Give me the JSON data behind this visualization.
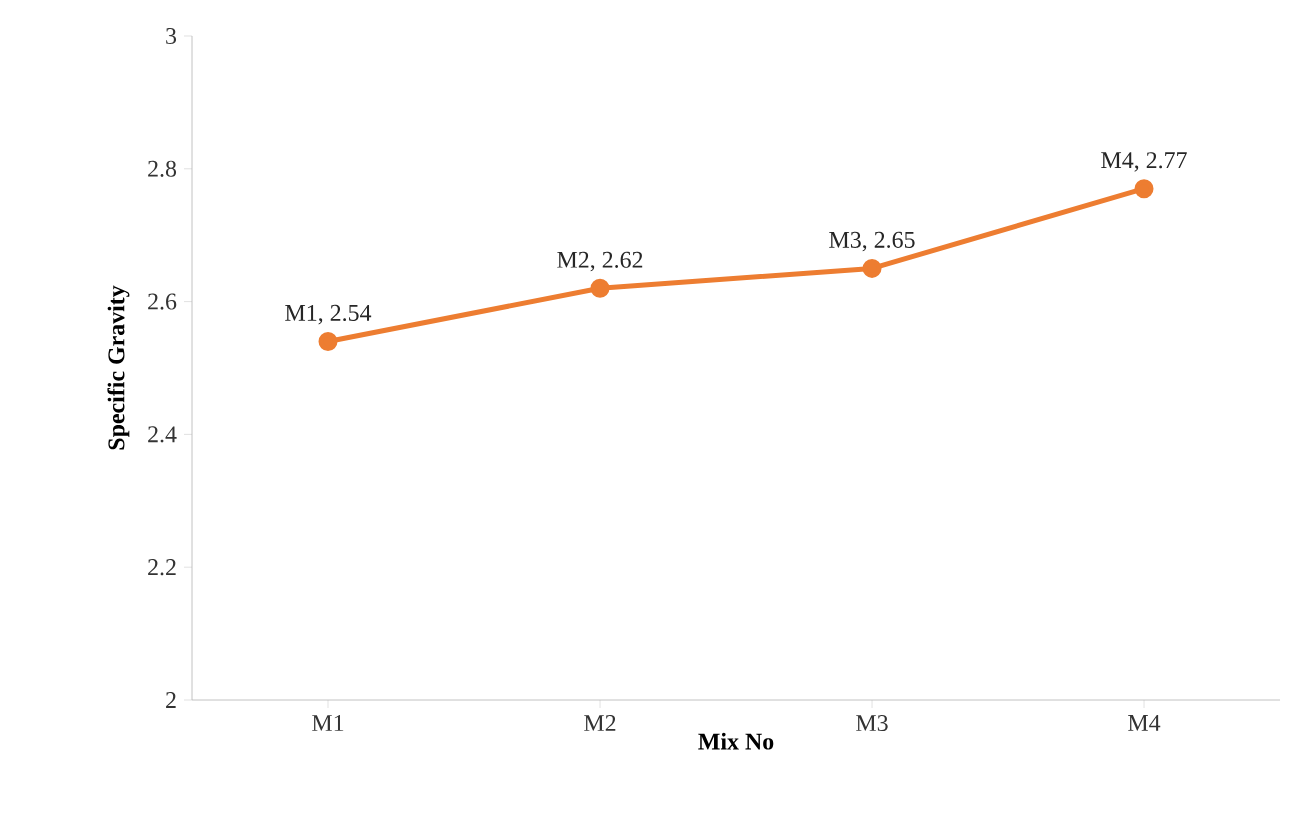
{
  "chart_data": {
    "type": "line",
    "xlabel": "Mix No",
    "ylabel": "Specific Gravity",
    "categories": [
      "M1",
      "M2",
      "M3",
      "M4"
    ],
    "series": [
      {
        "color": "#ed7d31",
        "values": [
          2.54,
          2.62,
          2.65,
          2.77
        ],
        "value_labels": [
          "M1, 2.54",
          "M2, 2.62",
          "M3, 2.65",
          "M4, 2.77"
        ]
      }
    ],
    "ylim": [
      2,
      3
    ],
    "yticks": [
      2,
      2.2,
      2.4,
      2.6,
      2.8,
      3
    ],
    "marker": "circle",
    "line_style": "solid"
  }
}
